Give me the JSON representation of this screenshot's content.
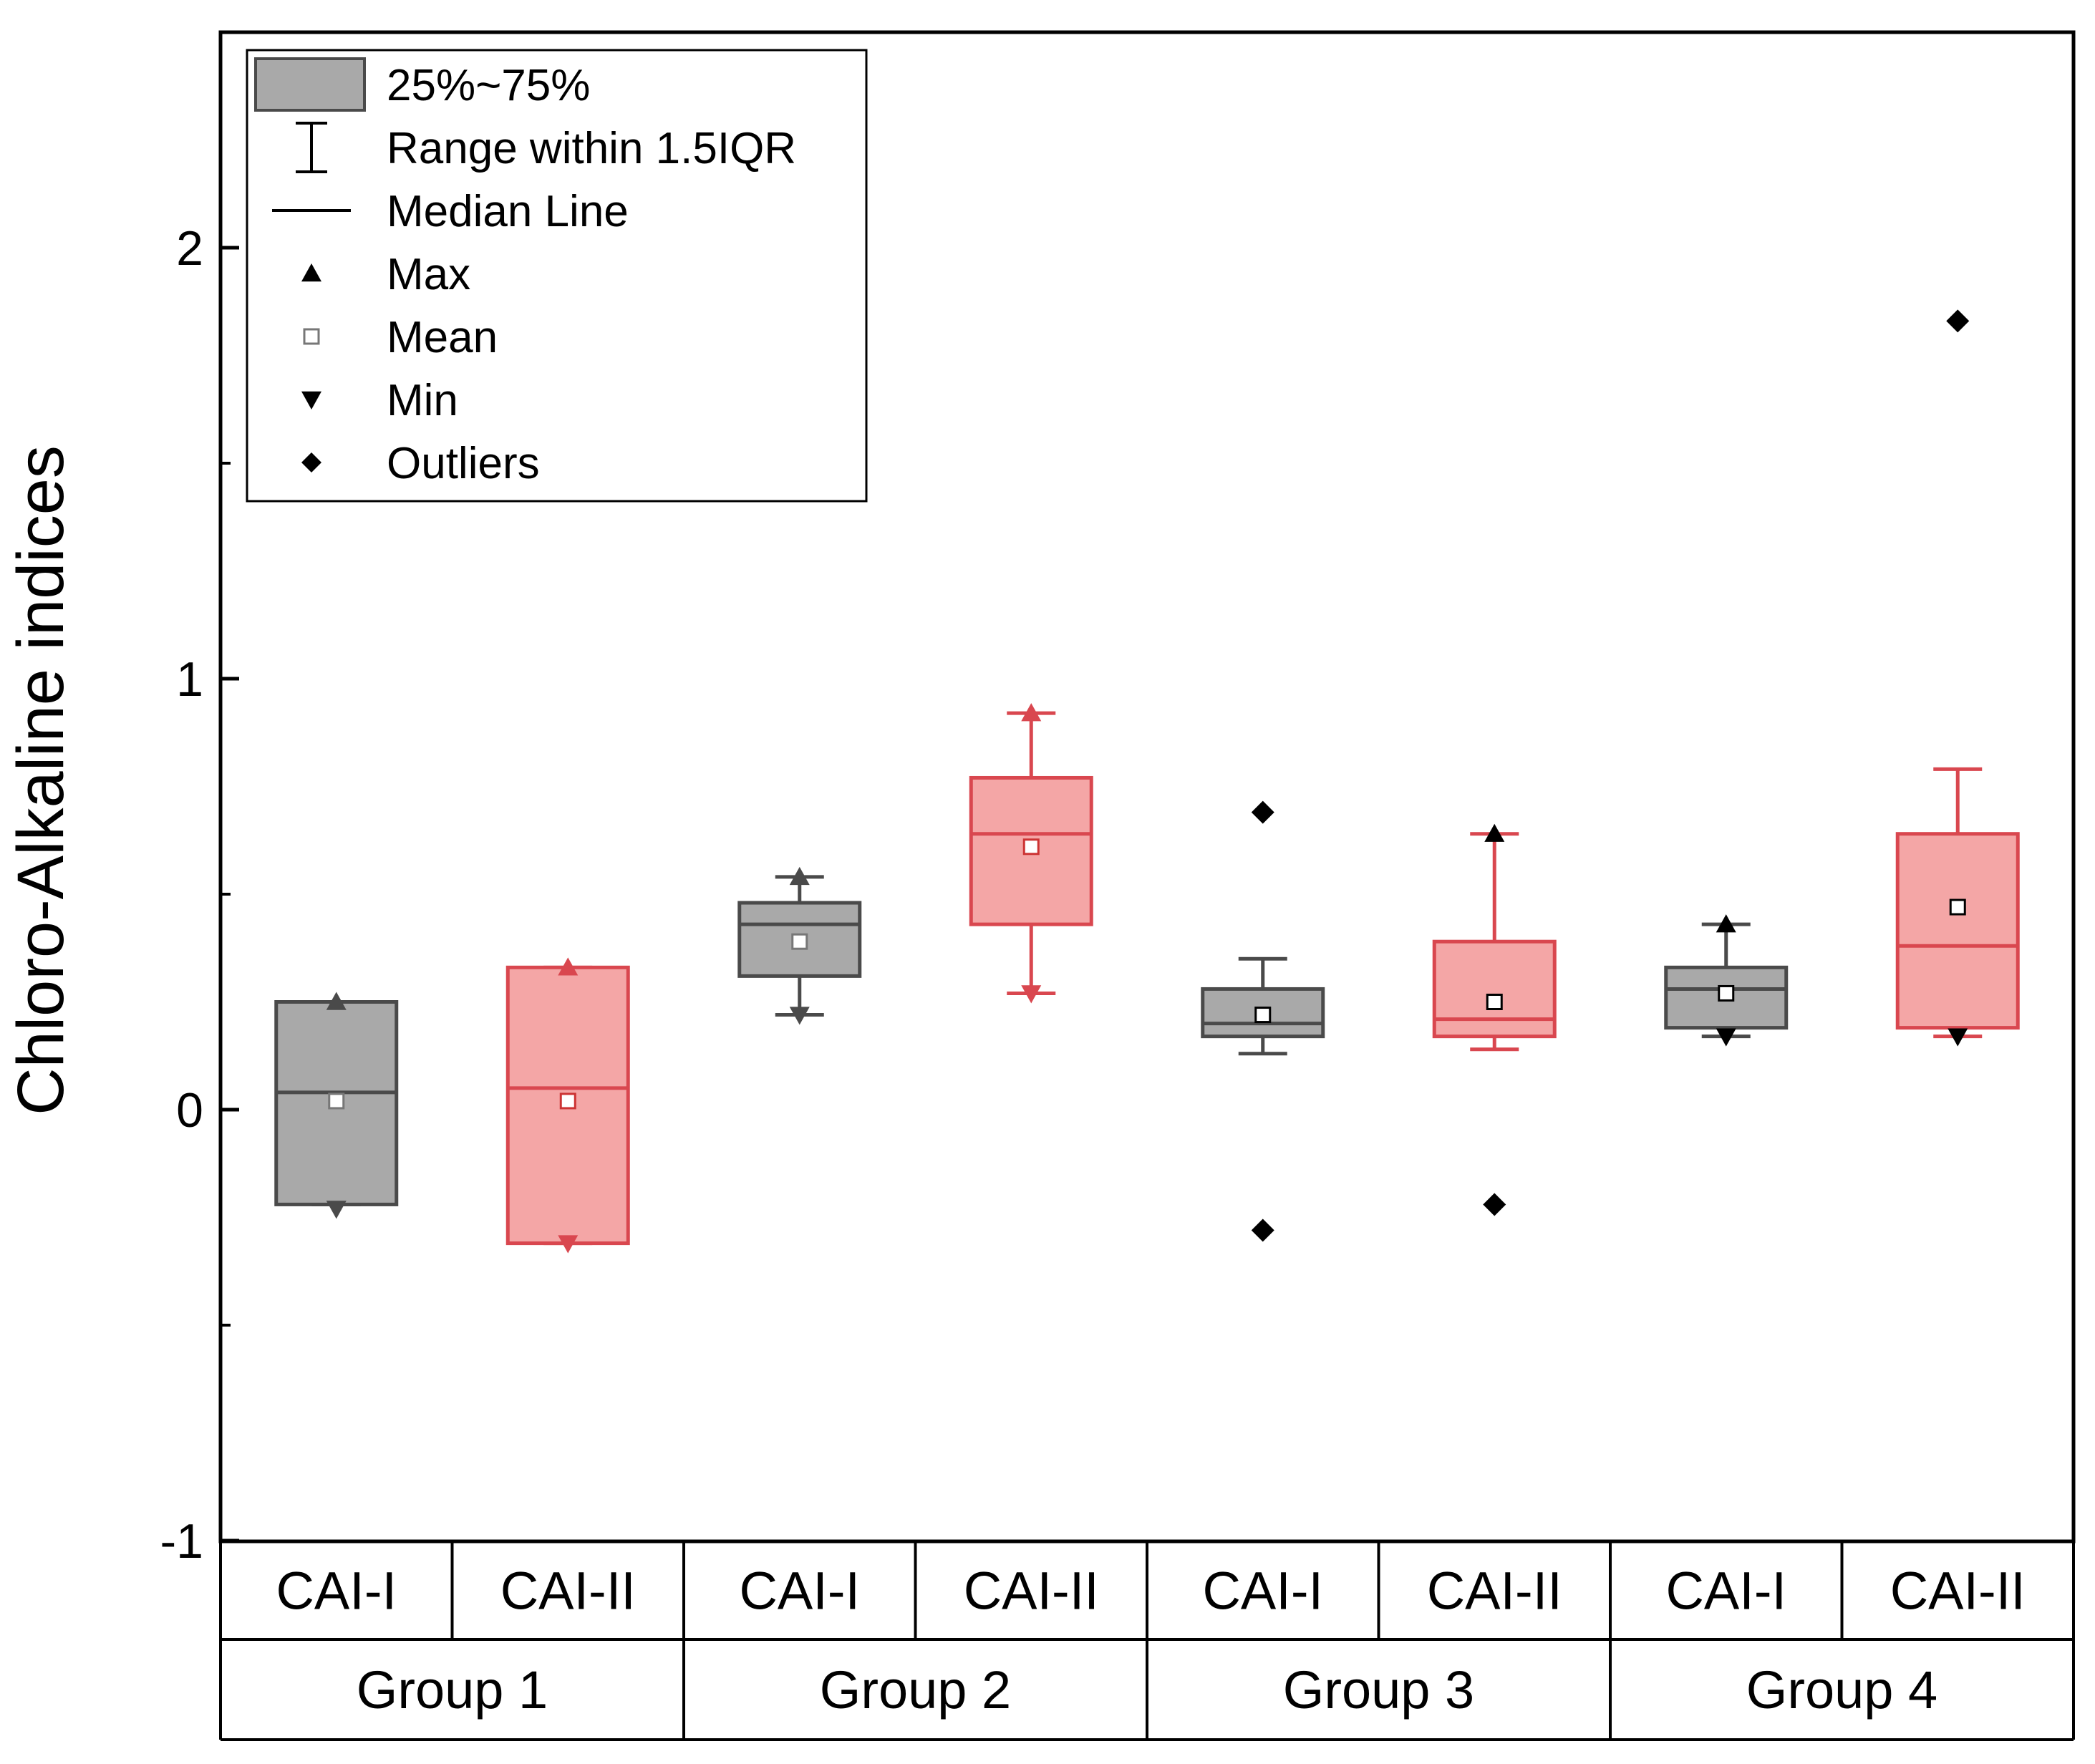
{
  "chart_data": {
    "type": "box",
    "title": "",
    "ylabel": "Chloro-Alkaline indices",
    "xlabel": "",
    "ylim": [
      -1,
      2.5
    ],
    "yticks": [
      -1,
      0,
      1,
      2
    ],
    "ytick_labels": [
      "-1",
      "0",
      "1",
      "2"
    ],
    "groups": [
      "Group 1",
      "Group 2",
      "Group 3",
      "Group 4"
    ],
    "categories": [
      "CAI-I",
      "CAI-II"
    ],
    "series_colors": {
      "CAI-I": "#a9a9a9",
      "CAI-II": "#f4a6a6"
    },
    "series_stroke": {
      "CAI-I": "#4a4a4a",
      "CAI-II": "#d9474f"
    },
    "legend": {
      "position": "top-left",
      "items": [
        {
          "symbol": "box",
          "label": "25%~75%"
        },
        {
          "symbol": "whisker",
          "label": "Range within 1.5IQR"
        },
        {
          "symbol": "line",
          "label": "Median Line"
        },
        {
          "symbol": "triangle-up",
          "label": "Max"
        },
        {
          "symbol": "square-open",
          "label": "Mean"
        },
        {
          "symbol": "triangle-down",
          "label": "Min"
        },
        {
          "symbol": "diamond",
          "label": "Outliers"
        }
      ]
    },
    "boxes": [
      {
        "group": "Group 1",
        "category": "CAI-I",
        "q1": -0.22,
        "median": 0.04,
        "q3": 0.25,
        "whisker_low": -0.22,
        "whisker_high": 0.25,
        "mean": 0.02,
        "max": 0.25,
        "min": -0.23,
        "outliers": []
      },
      {
        "group": "Group 1",
        "category": "CAI-II",
        "q1": -0.31,
        "median": 0.05,
        "q3": 0.33,
        "whisker_low": -0.31,
        "whisker_high": 0.33,
        "mean": 0.02,
        "max": 0.33,
        "min": -0.31,
        "outliers": []
      },
      {
        "group": "Group 2",
        "category": "CAI-I",
        "q1": 0.31,
        "median": 0.43,
        "q3": 0.48,
        "whisker_low": 0.22,
        "whisker_high": 0.54,
        "mean": 0.39,
        "max": 0.54,
        "min": 0.22,
        "outliers": []
      },
      {
        "group": "Group 2",
        "category": "CAI-II",
        "q1": 0.43,
        "median": 0.64,
        "q3": 0.77,
        "whisker_low": 0.27,
        "whisker_high": 0.92,
        "mean": 0.61,
        "max": 0.92,
        "min": 0.27,
        "outliers": []
      },
      {
        "group": "Group 3",
        "category": "CAI-I",
        "q1": 0.17,
        "median": 0.2,
        "q3": 0.28,
        "whisker_low": 0.13,
        "whisker_high": 0.35,
        "mean": 0.22,
        "max": 0.69,
        "min": -0.28,
        "outliers": [
          0.69,
          -0.28
        ]
      },
      {
        "group": "Group 3",
        "category": "CAI-II",
        "q1": 0.17,
        "median": 0.21,
        "q3": 0.39,
        "whisker_low": 0.14,
        "whisker_high": 0.64,
        "mean": 0.25,
        "max": 0.64,
        "min": -0.22,
        "outliers": [
          -0.22
        ]
      },
      {
        "group": "Group 4",
        "category": "CAI-I",
        "q1": 0.19,
        "median": 0.28,
        "q3": 0.33,
        "whisker_low": 0.17,
        "whisker_high": 0.43,
        "mean": 0.27,
        "max": 0.43,
        "min": 0.17,
        "outliers": []
      },
      {
        "group": "Group 4",
        "category": "CAI-II",
        "q1": 0.19,
        "median": 0.38,
        "q3": 0.64,
        "whisker_low": 0.17,
        "whisker_high": 0.79,
        "mean": 0.47,
        "max": 1.83,
        "min": 0.17,
        "outliers": [
          1.83
        ]
      }
    ]
  }
}
